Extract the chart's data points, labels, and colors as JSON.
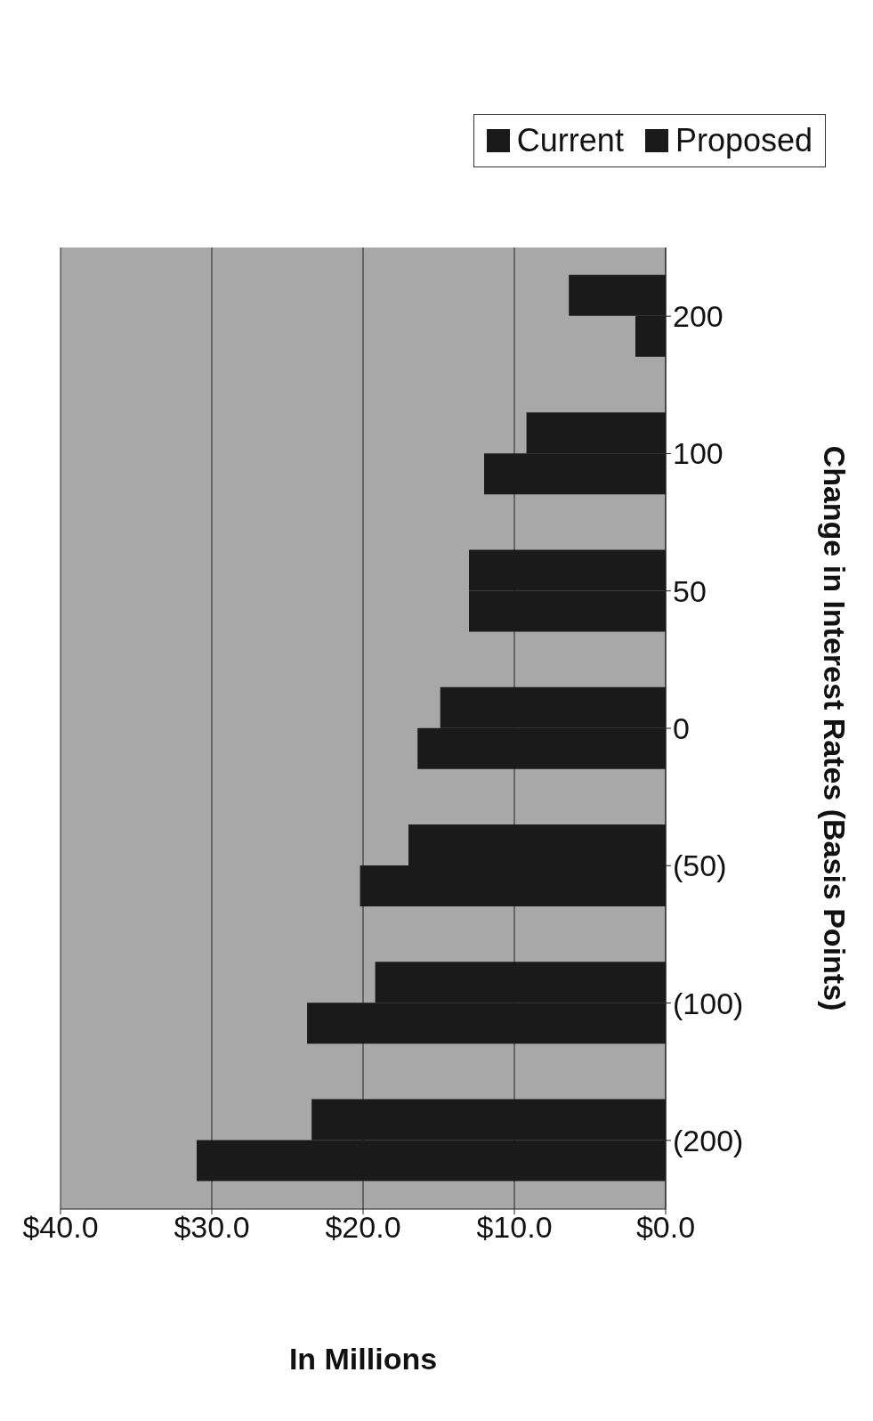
{
  "chart_data": {
    "type": "bar",
    "orientation": "horizontal",
    "xlabel": "In Millions",
    "ylabel": "Change in Interest Rates (Basis Points)",
    "categories": [
      "200",
      "100",
      "50",
      "0",
      "(50)",
      "(100)",
      "(200)"
    ],
    "series": [
      {
        "name": "Proposed",
        "color": "#1a1a1a",
        "values": [
          6.4,
          9.2,
          13.0,
          14.9,
          17.0,
          19.2,
          23.4
        ]
      },
      {
        "name": "Current",
        "color": "#1a1a1a",
        "values": [
          2.0,
          12.0,
          13.0,
          16.4,
          20.2,
          23.7,
          31.0
        ]
      }
    ],
    "xlim": [
      40,
      0
    ],
    "xticks": [
      {
        "value": 40,
        "label": "$40.0"
      },
      {
        "value": 30,
        "label": "$30.0"
      },
      {
        "value": 20,
        "label": "$20.0"
      },
      {
        "value": 10,
        "label": "$10.0"
      },
      {
        "value": 0,
        "label": "$0.0"
      }
    ],
    "grid": "x",
    "legend": "top right"
  }
}
